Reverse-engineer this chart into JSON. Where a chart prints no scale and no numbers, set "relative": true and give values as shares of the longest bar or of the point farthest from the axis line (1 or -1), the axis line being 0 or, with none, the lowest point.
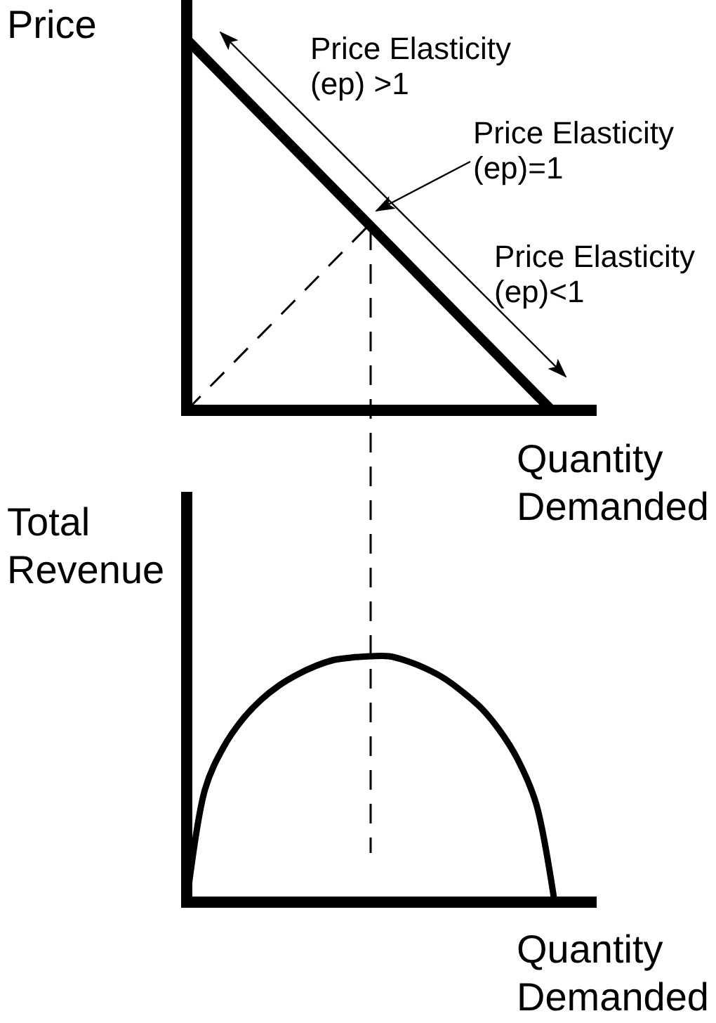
{
  "chart_data": [
    {
      "type": "line",
      "relative": true,
      "ylabel": "Price",
      "xlabel": "Quantity Demanded",
      "categories": [
        null,
        null,
        null
      ],
      "line_style": "solid",
      "series": [
        {
          "color": "#000000",
          "values": [
            1,
            0.5,
            0
          ]
        },
        {
          "color": "#000000",
          "line_style": "dashed",
          "values": [
            0,
            0.5,
            null
          ]
        }
      ],
      "annotations": [
        "Price Elasticity (ep) >1",
        "Price Elasticity (ep)=1",
        "Price Elasticity (ep)<1"
      ]
    },
    {
      "type": "line",
      "relative": true,
      "ylabel": "Total Revenue",
      "xlabel": "Quantity Demanded",
      "categories": [
        null,
        null,
        null,
        null,
        null,
        null,
        null,
        null,
        null,
        null,
        null,
        null,
        null,
        null,
        null,
        null,
        null,
        null,
        null,
        null,
        null
      ],
      "line_style": "solid",
      "series": [
        {
          "color": "#000000",
          "values": [
            0,
            0.46,
            0.63,
            0.74,
            0.82,
            0.88,
            0.925,
            0.96,
            0.985,
            0.995,
            1,
            1,
            0.98,
            0.95,
            0.91,
            0.855,
            0.79,
            0.7,
            0.58,
            0.4,
            0
          ]
        }
      ]
    }
  ]
}
